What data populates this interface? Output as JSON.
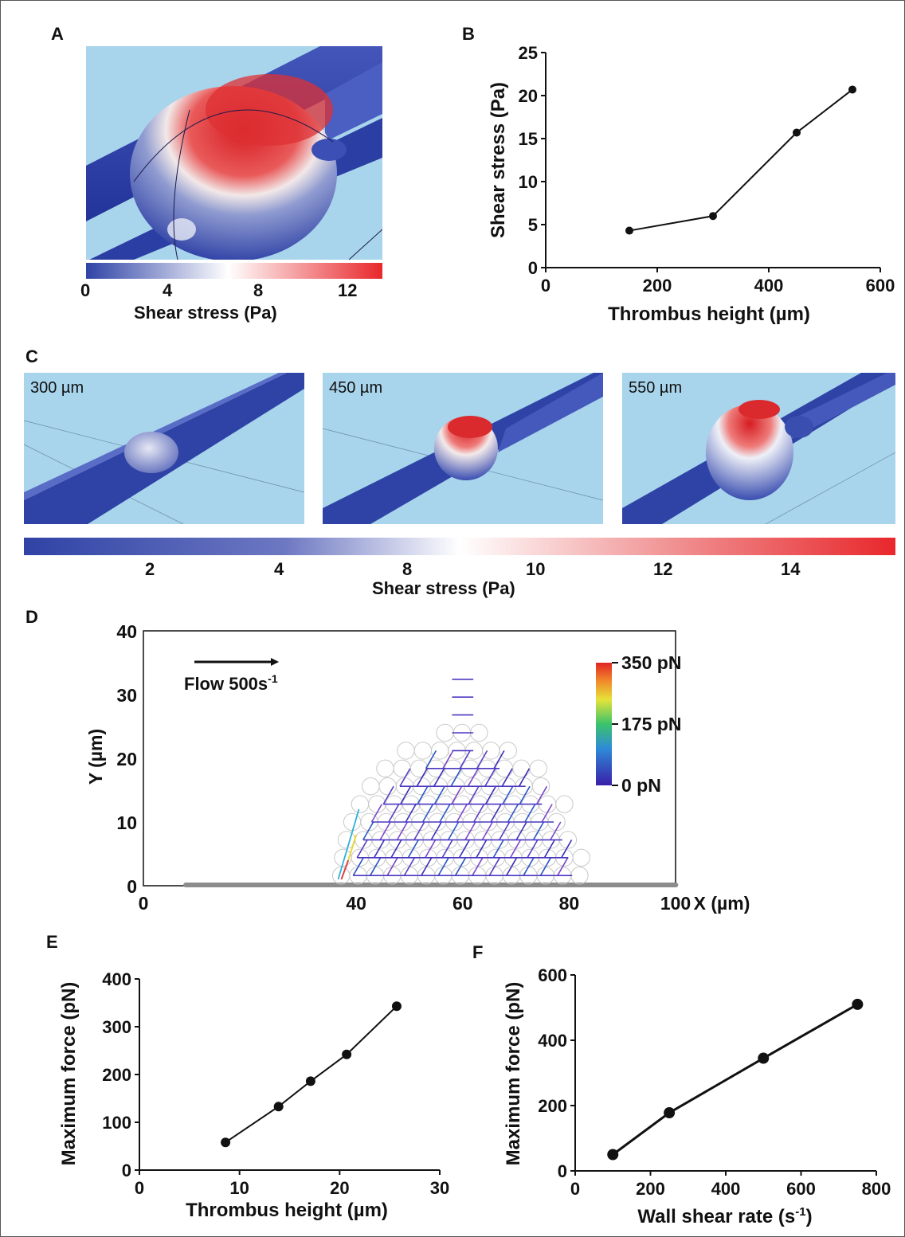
{
  "panels": {
    "a": {
      "letter": "A",
      "colorbar_ticks": [
        "0",
        "4",
        "8",
        "12"
      ],
      "colorbar_label": "Shear stress (Pa)"
    },
    "b": {
      "letter": "B"
    },
    "c": {
      "letter": "C",
      "labels": [
        "300 µm",
        "450 µm",
        "550 µm"
      ],
      "colorbar_ticks": [
        "2",
        "4",
        "8",
        "10",
        "12",
        "14"
      ],
      "colorbar_label": "Shear stress (Pa)"
    },
    "d": {
      "letter": "D"
    },
    "e": {
      "letter": "E"
    },
    "f": {
      "letter": "F"
    }
  },
  "colors": {
    "vessel_blue": "#2f43a6",
    "background_blue": "#a8d4ec",
    "hot_red": "#e8272b",
    "white": "#ffffff",
    "substrate_gray": "#8c8c8c"
  },
  "chart_data": [
    {
      "id": "B",
      "type": "line",
      "x": [
        150,
        300,
        450,
        550
      ],
      "y": [
        4.3,
        6.0,
        15.7,
        20.7
      ],
      "xlabel": "Thrombus height (µm)",
      "ylabel": "Shear stress (Pa)",
      "xlim": [
        0,
        600
      ],
      "ylim": [
        0,
        25
      ],
      "xticks": [
        0,
        200,
        400,
        600
      ],
      "yticks": [
        0,
        5,
        10,
        15,
        20,
        25
      ]
    },
    {
      "id": "D",
      "type": "scatter",
      "xlabel": "X (µm)",
      "ylabel": "Y (µm)",
      "xlim": [
        0,
        100
      ],
      "ylim": [
        0,
        40
      ],
      "xticks": [
        0,
        40,
        60,
        80,
        100
      ],
      "yticks": [
        0,
        10,
        20,
        30,
        40
      ],
      "annotation": {
        "text_main": "Flow 500s",
        "text_sup": "-1"
      },
      "colorbar": {
        "ticks": [
          "350 pN",
          "175 pN",
          "0 pN"
        ],
        "max": 350,
        "min": 0
      }
    },
    {
      "id": "E",
      "type": "line",
      "x": [
        8.6,
        13.9,
        17.1,
        20.7,
        25.7
      ],
      "y": [
        58,
        133,
        186,
        242,
        343
      ],
      "xlabel": "Thrombus height (µm)",
      "ylabel": "Maximum force (pN)",
      "xlim": [
        0,
        30
      ],
      "ylim": [
        0,
        400
      ],
      "xticks": [
        0,
        10,
        20,
        30
      ],
      "yticks": [
        0,
        100,
        200,
        300,
        400
      ]
    },
    {
      "id": "F",
      "type": "line",
      "x": [
        100,
        250,
        500,
        750
      ],
      "y": [
        50,
        178,
        345,
        510
      ],
      "xlabel_main": "Wall shear rate (s",
      "xlabel_sup": "-1",
      "xlabel_end": ")",
      "ylabel": "Maximum force (pN)",
      "xlim": [
        0,
        800
      ],
      "ylim": [
        0,
        600
      ],
      "xticks": [
        0,
        200,
        400,
        600,
        800
      ],
      "yticks": [
        0,
        200,
        400,
        600
      ]
    }
  ]
}
